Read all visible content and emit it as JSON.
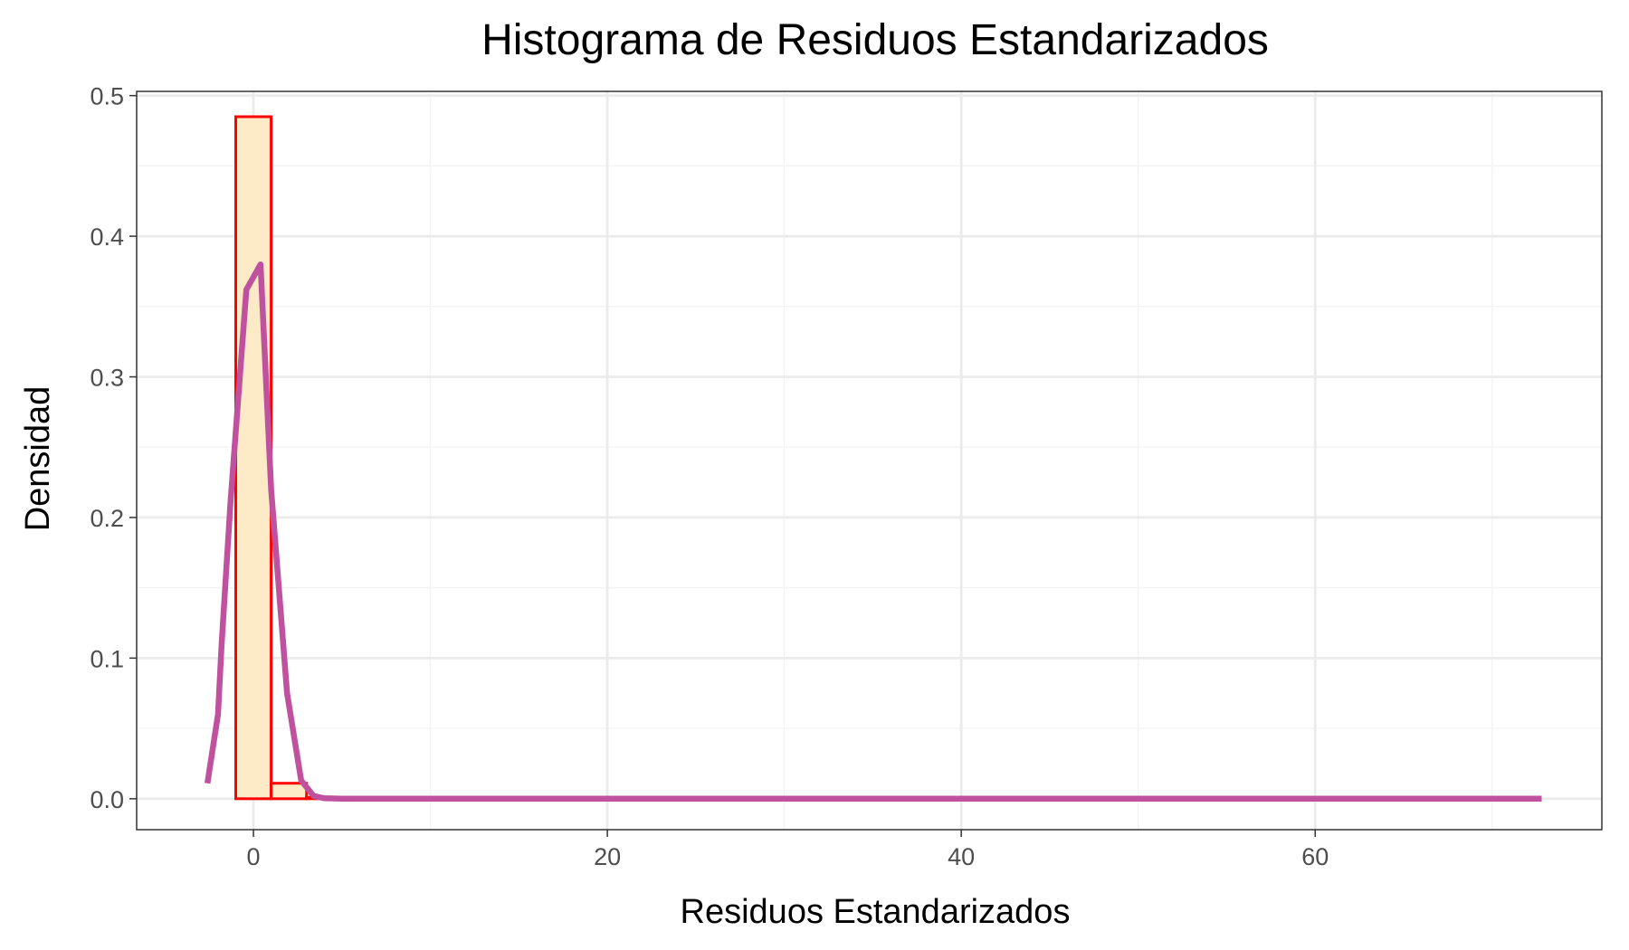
{
  "chart_data": {
    "type": "bar",
    "title": "Histograma de Residuos Estandarizados",
    "xlabel": "Residuos Estandarizados",
    "ylabel": "Densidad",
    "xlim": [
      -6.6,
      76.2
    ],
    "ylim": [
      -0.022,
      0.503
    ],
    "x_ticks": [
      0,
      20,
      40,
      60
    ],
    "x_tick_labels": [
      "0",
      "20",
      "40",
      "60"
    ],
    "y_ticks": [
      0.0,
      0.1,
      0.2,
      0.3,
      0.4,
      0.5
    ],
    "y_tick_labels": [
      "0.0",
      "0.1",
      "0.2",
      "0.3",
      "0.4",
      "0.5"
    ],
    "grid": true,
    "legend": "none",
    "histogram": {
      "bin_width": 2,
      "bins": [
        {
          "x_min": -3,
          "x_max": -1,
          "density": 0.0
        },
        {
          "x_min": -1,
          "x_max": 1,
          "density": 0.485
        },
        {
          "x_min": 1,
          "x_max": 3,
          "density": 0.011
        },
        {
          "x_min": 3,
          "x_max": 5,
          "density": 0.001
        },
        {
          "x_min": 5,
          "x_max": 73,
          "density": 0.0
        }
      ],
      "fill_color": "#fdebc8",
      "outline_color": "#ff0000"
    },
    "density_curve": {
      "color": "#c0519f",
      "x": [
        -2.6,
        -2.0,
        -1.8,
        -1.3,
        -0.4,
        0.4,
        1.0,
        1.9,
        2.7,
        3.4,
        4.0,
        5.0,
        10,
        20,
        30,
        40,
        50,
        60,
        72.8
      ],
      "y": [
        0.011,
        0.06,
        0.11,
        0.21,
        0.362,
        0.38,
        0.22,
        0.075,
        0.013,
        0.002,
        0.0003,
        0.0,
        0.0,
        0.0,
        0.0,
        0.0,
        0.0,
        0.0,
        0.0
      ]
    },
    "colors": {
      "panel_border": "#333333",
      "grid_major": "#ebebeb",
      "grid_minor": "#f3f3f3",
      "background": "#ffffff"
    }
  }
}
